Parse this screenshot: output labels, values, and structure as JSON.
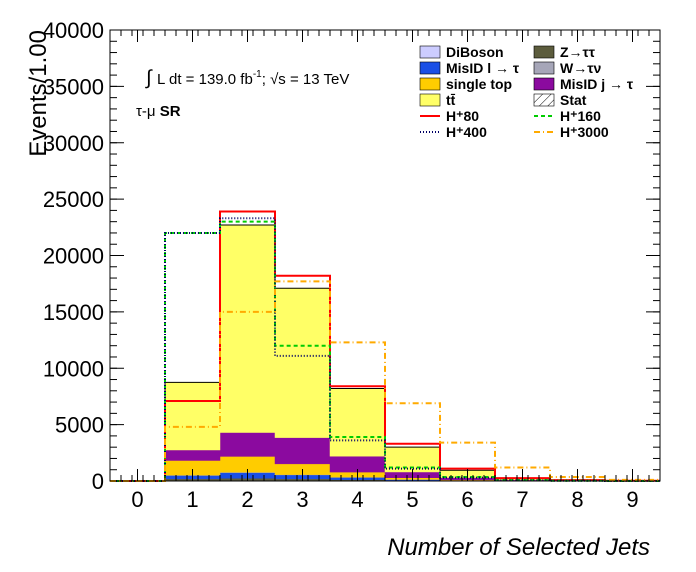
{
  "chart_data": {
    "type": "bar",
    "subtype": "stacked-histogram",
    "xlabel": "Number of Selected Jets",
    "ylabel": "Events/1.00",
    "xlim": [
      -0.5,
      9.5
    ],
    "ylim": [
      0,
      40000
    ],
    "x_ticks": [
      "0",
      "1",
      "2",
      "3",
      "4",
      "5",
      "6",
      "7",
      "8",
      "9"
    ],
    "y_ticks": [
      "0",
      "5000",
      "10000",
      "15000",
      "20000",
      "25000",
      "30000",
      "35000",
      "40000"
    ],
    "bins": [
      0,
      1,
      2,
      3,
      4,
      5,
      6,
      7,
      8,
      9
    ],
    "annotations": [
      {
        "id": "lumi",
        "prefix": "∫",
        "text": "L dt = 139.0 fb",
        "sup": "-1",
        "sep": ";",
        "sqrt_label": "√s = 13 TeV"
      },
      {
        "id": "region",
        "text": "τ-μ",
        "bold": "SR"
      }
    ],
    "stack": [
      {
        "name": "DiBoson",
        "color": "#ccccff",
        "values": [
          0,
          40,
          60,
          50,
          30,
          10,
          3,
          0,
          0,
          0
        ]
      },
      {
        "name": "Z→ττ",
        "color": "#5c5c3d",
        "values": [
          0,
          150,
          180,
          140,
          90,
          40,
          15,
          5,
          2,
          0
        ]
      },
      {
        "name": "MisID l → τ",
        "color": "#1a4fe6",
        "values": [
          0,
          300,
          500,
          350,
          200,
          80,
          30,
          10,
          3,
          0
        ]
      },
      {
        "name": "W→τν",
        "color": "#a6a6b8",
        "values": [
          0,
          30,
          40,
          30,
          20,
          10,
          3,
          0,
          0,
          0
        ]
      },
      {
        "name": "single top",
        "color": "#ffcc00",
        "values": [
          0,
          1300,
          1400,
          950,
          450,
          150,
          50,
          15,
          5,
          0
        ]
      },
      {
        "name": "MisID j → τ",
        "color": "#8b0a9f",
        "values": [
          0,
          930,
          2120,
          2330,
          1410,
          510,
          200,
          70,
          20,
          5
        ]
      },
      {
        "name": "tt̄",
        "color": "#ffff66",
        "values": [
          0,
          6000,
          18400,
          13250,
          6000,
          2200,
          650,
          120,
          40,
          10
        ]
      }
    ],
    "total_values": [
      0,
      8750,
      22700,
      17100,
      8200,
      3000,
      950,
      220,
      70,
      15
    ],
    "signals": [
      {
        "name": "H⁺80",
        "color": "#ff0000",
        "style": "solid",
        "values": [
          0,
          7100,
          23900,
          18200,
          8400,
          3300,
          1100,
          250,
          80,
          20
        ]
      },
      {
        "name": "H⁺160",
        "color": "#00cc00",
        "style": "dashed",
        "values": [
          0,
          22000,
          23000,
          12000,
          3900,
          1200,
          350,
          80,
          20,
          5
        ]
      },
      {
        "name": "H⁺400",
        "color": "#000066",
        "style": "dotted",
        "values": [
          0,
          22000,
          23300,
          11100,
          3600,
          1100,
          300,
          70,
          20,
          5
        ]
      },
      {
        "name": "H⁺3000",
        "color": "#ffaa00",
        "style": "dashdot",
        "values": [
          0,
          4800,
          15000,
          17700,
          12300,
          6900,
          3400,
          1200,
          350,
          100
        ]
      }
    ],
    "legend": {
      "placement": "top-right",
      "columns": [
        [
          {
            "label": "DiBoson",
            "kind": "fill",
            "color": "#ccccff"
          },
          {
            "label": "MisID l → τ",
            "kind": "fill",
            "color": "#1a4fe6"
          },
          {
            "label": "single top",
            "kind": "fill",
            "color": "#ffcc00"
          },
          {
            "label": "tt̄",
            "kind": "fill",
            "color": "#ffff66"
          },
          {
            "label": "H⁺80",
            "kind": "line",
            "color": "#ff0000",
            "style": "solid"
          },
          {
            "label": "H⁺400",
            "kind": "line",
            "color": "#000066",
            "style": "dotted"
          }
        ],
        [
          {
            "label": "Z→ττ",
            "kind": "fill",
            "color": "#5c5c3d"
          },
          {
            "label": "W→τν",
            "kind": "fill",
            "color": "#a6a6b8"
          },
          {
            "label": "MisID j → τ",
            "kind": "fill",
            "color": "#8b0a9f"
          },
          {
            "label": "Stat",
            "kind": "hatch",
            "color": "#000000"
          },
          {
            "label": "H⁺160",
            "kind": "line",
            "color": "#00cc00",
            "style": "dashed"
          },
          {
            "label": "H⁺3000",
            "kind": "line",
            "color": "#ffaa00",
            "style": "dashdot"
          }
        ]
      ]
    },
    "grid": false
  }
}
